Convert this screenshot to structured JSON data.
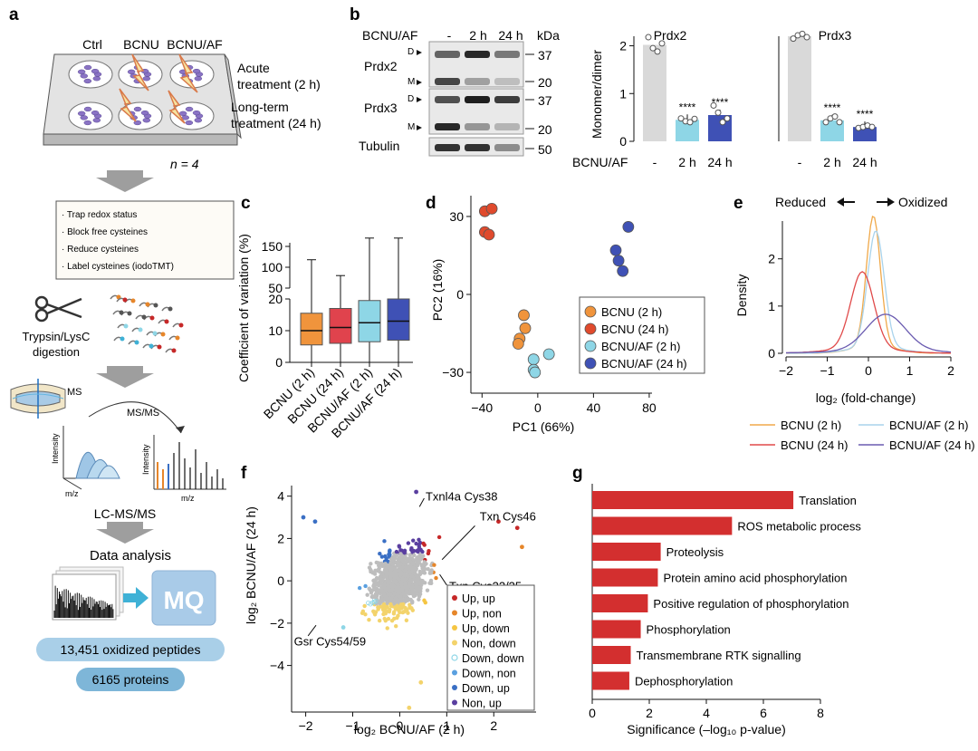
{
  "panel_labels": {
    "a": "a",
    "b": "b",
    "c": "c",
    "d": "d",
    "e": "e",
    "f": "f",
    "g": "g"
  },
  "panel_a": {
    "conditions": [
      "Ctrl",
      "BCNU",
      "BCNU/AF"
    ],
    "acute": [
      "Acute",
      "treatment (2 h)"
    ],
    "long": [
      "Long-term",
      "treatment (24 h)"
    ],
    "n": "n = 4",
    "steps": [
      "· Trap redox status",
      "· Block free cysteines",
      "· Reduce cysteines",
      "· Label cysteines (iodoTMT)"
    ],
    "digestion": [
      "Trypsin/LysC",
      "digestion"
    ],
    "ms": "MS",
    "msms": "MS/MS",
    "intensity": "Intensity",
    "mz": "m/z",
    "lcms": "LC-MS/MS",
    "data_analysis": "Data analysis",
    "mq_logo": "MQ",
    "peptides": "13,451 oxidized peptides",
    "proteins": "6165 proteins"
  },
  "panel_b": {
    "header_label": "BCNU/AF",
    "lanes": [
      "-",
      "2 h",
      "24 h"
    ],
    "kda": "kDa",
    "blots": [
      {
        "name": "Prdx2",
        "markers": [
          "37",
          "20"
        ],
        "bands": [
          "D",
          "M"
        ]
      },
      {
        "name": "Prdx3",
        "markers": [
          "37",
          "20"
        ],
        "bands": [
          "D",
          "M"
        ]
      },
      {
        "name": "Tubulin",
        "markers": [
          "50"
        ],
        "bands": []
      }
    ],
    "bar_ylabel": "Monomer/dimer",
    "xaxis_label": "BCNU/AF",
    "sig": "****"
  },
  "panel_e_ann": {
    "reduced": "Reduced",
    "oxidized": "Oxidized"
  },
  "chart_data": [
    {
      "id": "b_prdx2",
      "type": "bar",
      "title": "Prdx2",
      "categories": [
        "-",
        "2 h",
        "24 h"
      ],
      "values": [
        2.02,
        0.45,
        0.55
      ],
      "ylabel": "Monomer/dimer",
      "xlabel": "BCNU/AF",
      "ylim": [
        0,
        2.2
      ],
      "yticks": [
        "0",
        "1",
        "2"
      ],
      "colors": [
        "#d9d9d9",
        "#8ed6e6",
        "#3f51b5"
      ],
      "points": [
        [
          2.18,
          1.95,
          1.88,
          2.05
        ],
        [
          0.48,
          0.42,
          0.4,
          0.47
        ],
        [
          0.75,
          0.6,
          0.4,
          0.48
        ]
      ],
      "annotations": [
        "",
        "****",
        "****"
      ]
    },
    {
      "id": "b_prdx3",
      "type": "bar",
      "title": "Prdx3",
      "categories": [
        "-",
        "2 h",
        "24 h"
      ],
      "values": [
        2.2,
        0.44,
        0.3
      ],
      "ylim": [
        0,
        2.2
      ],
      "colors": [
        "#d9d9d9",
        "#8ed6e6",
        "#3f51b5"
      ],
      "points": [
        [
          2.15,
          2.22,
          2.25,
          2.18
        ],
        [
          0.4,
          0.48,
          0.52,
          0.4
        ],
        [
          0.28,
          0.3,
          0.33,
          0.3
        ]
      ],
      "annotations": [
        "",
        "****",
        "****"
      ]
    },
    {
      "id": "c",
      "type": "box",
      "ylabel": "Coefficient of variation (%)",
      "categories": [
        "BCNU (2 h)",
        "BCNU (24 h)",
        "BCNU/AF (2 h)",
        "BCNU/AF (24 h)"
      ],
      "yticks_lower": [
        "0",
        "10",
        "20"
      ],
      "yticks_upper": [
        "50",
        "100",
        "150"
      ],
      "boxes": [
        {
          "min": 0,
          "q1": 5.5,
          "median": 10,
          "q3": 15.5,
          "max": 118,
          "color": "#f0943c"
        },
        {
          "min": 0,
          "q1": 6,
          "median": 11,
          "q3": 17,
          "max": 80,
          "color": "#e0434d"
        },
        {
          "min": 0,
          "q1": 6.5,
          "median": 12.5,
          "q3": 19.5,
          "max": 170,
          "color": "#8ed6e6"
        },
        {
          "min": 0,
          "q1": 7,
          "median": 13,
          "q3": 20,
          "max": 170,
          "color": "#3f51b5"
        }
      ]
    },
    {
      "id": "d",
      "type": "scatter",
      "xlabel": "PC1 (66%)",
      "ylabel": "PC2 (16%)",
      "xlim": [
        -48,
        82
      ],
      "ylim": [
        -38,
        38
      ],
      "xticks": [
        -40,
        0,
        40,
        80
      ],
      "yticks": [
        -30,
        0,
        30
      ],
      "series": [
        {
          "name": "BCNU (2 h)",
          "color": "#f0943c",
          "points": [
            [
              -10,
              -8
            ],
            [
              -9,
              -13
            ],
            [
              -13,
              -17
            ],
            [
              -14,
              -19
            ]
          ]
        },
        {
          "name": "BCNU (24 h)",
          "color": "#e04a2d",
          "points": [
            [
              -38,
              32
            ],
            [
              -33,
              33
            ],
            [
              -38,
              24
            ],
            [
              -35,
              23
            ]
          ]
        },
        {
          "name": "BCNU/AF (2 h)",
          "color": "#8ed6e6",
          "points": [
            [
              -3,
              -25
            ],
            [
              8,
              -23
            ],
            [
              -3,
              -29
            ],
            [
              -2,
              -30
            ]
          ]
        },
        {
          "name": "BCNU/AF (24 h)",
          "color": "#3f51b5",
          "points": [
            [
              65,
              26
            ],
            [
              56,
              17
            ],
            [
              58,
              13
            ],
            [
              61,
              9
            ]
          ]
        }
      ]
    },
    {
      "id": "e",
      "type": "density",
      "xlabel": "log₂ (fold-change)",
      "ylabel": "Density",
      "xlim": [
        -2,
        2
      ],
      "ylim": [
        0,
        2.8
      ],
      "xticks": [
        -2,
        -1,
        0,
        1,
        2
      ],
      "yticks": [
        0,
        1,
        2
      ],
      "series": [
        {
          "name": "BCNU (2 h)",
          "color": "#f0a94a",
          "mu": 0.12,
          "sigma": 0.17,
          "peak": 2.75
        },
        {
          "name": "BCNU/AF (2 h)",
          "color": "#a9d3ec",
          "mu": 0.18,
          "sigma": 0.2,
          "peak": 2.45
        },
        {
          "name": "BCNU (24 h)",
          "color": "#e04a4a",
          "mu": -0.15,
          "sigma": 0.28,
          "peak": 1.63
        },
        {
          "name": "BCNU/AF (24 h)",
          "color": "#6a5bb0",
          "mu": 0.42,
          "sigma": 0.48,
          "peak": 0.78
        }
      ]
    },
    {
      "id": "f",
      "type": "scatter",
      "xlabel": "log₂ BCNU/AF (2 h)",
      "ylabel": "log₂ BCNU/AF (24 h)",
      "xlim": [
        -2.3,
        2.9
      ],
      "ylim": [
        -6.2,
        4.5
      ],
      "xticks": [
        -2,
        -1,
        0,
        1,
        2
      ],
      "yticks": [
        -4,
        -2,
        0,
        2,
        4
      ],
      "legend": [
        {
          "name": "Up, up",
          "color": "#c62828"
        },
        {
          "name": "Up, non",
          "color": "#e6862a"
        },
        {
          "name": "Up, down",
          "color": "#f5c542"
        },
        {
          "name": "Non, down",
          "color": "#f3d36b"
        },
        {
          "name": "Down, down",
          "color": "#8ed6e6"
        },
        {
          "name": "Down, non",
          "color": "#5aa0e0"
        },
        {
          "name": "Down, up",
          "color": "#3a6fc4"
        },
        {
          "name": "Non, up",
          "color": "#5a3fa0"
        }
      ],
      "annotations": [
        {
          "text": "Txnl4a Cys38",
          "x": 0.5,
          "y": 3.8
        },
        {
          "text": "Txn Cys46",
          "x": 1.05,
          "y": 1.0
        },
        {
          "text": "Txn Cys32/35",
          "x": 0.95,
          "y": 0.4
        },
        {
          "text": "Gsr Cys54/59",
          "x": -1.8,
          "y": -2.8
        }
      ]
    },
    {
      "id": "g",
      "type": "bar",
      "orientation": "horizontal",
      "xlabel": "Significance (–log₁₀ p-value)",
      "xlim": [
        0,
        8
      ],
      "xticks": [
        0,
        2,
        4,
        6,
        8
      ],
      "color": "#d32f2f",
      "categories": [
        "Translation",
        "ROS metabolic process",
        "Proteolysis",
        "Protein amino acid phosphorylation",
        "Positive regulation of phosphorylation",
        "Phosphorylation",
        "Transmembrane RTK signalling",
        "Dephosphorylation"
      ],
      "values": [
        7.05,
        4.9,
        2.4,
        2.3,
        1.95,
        1.7,
        1.35,
        1.3
      ]
    }
  ]
}
